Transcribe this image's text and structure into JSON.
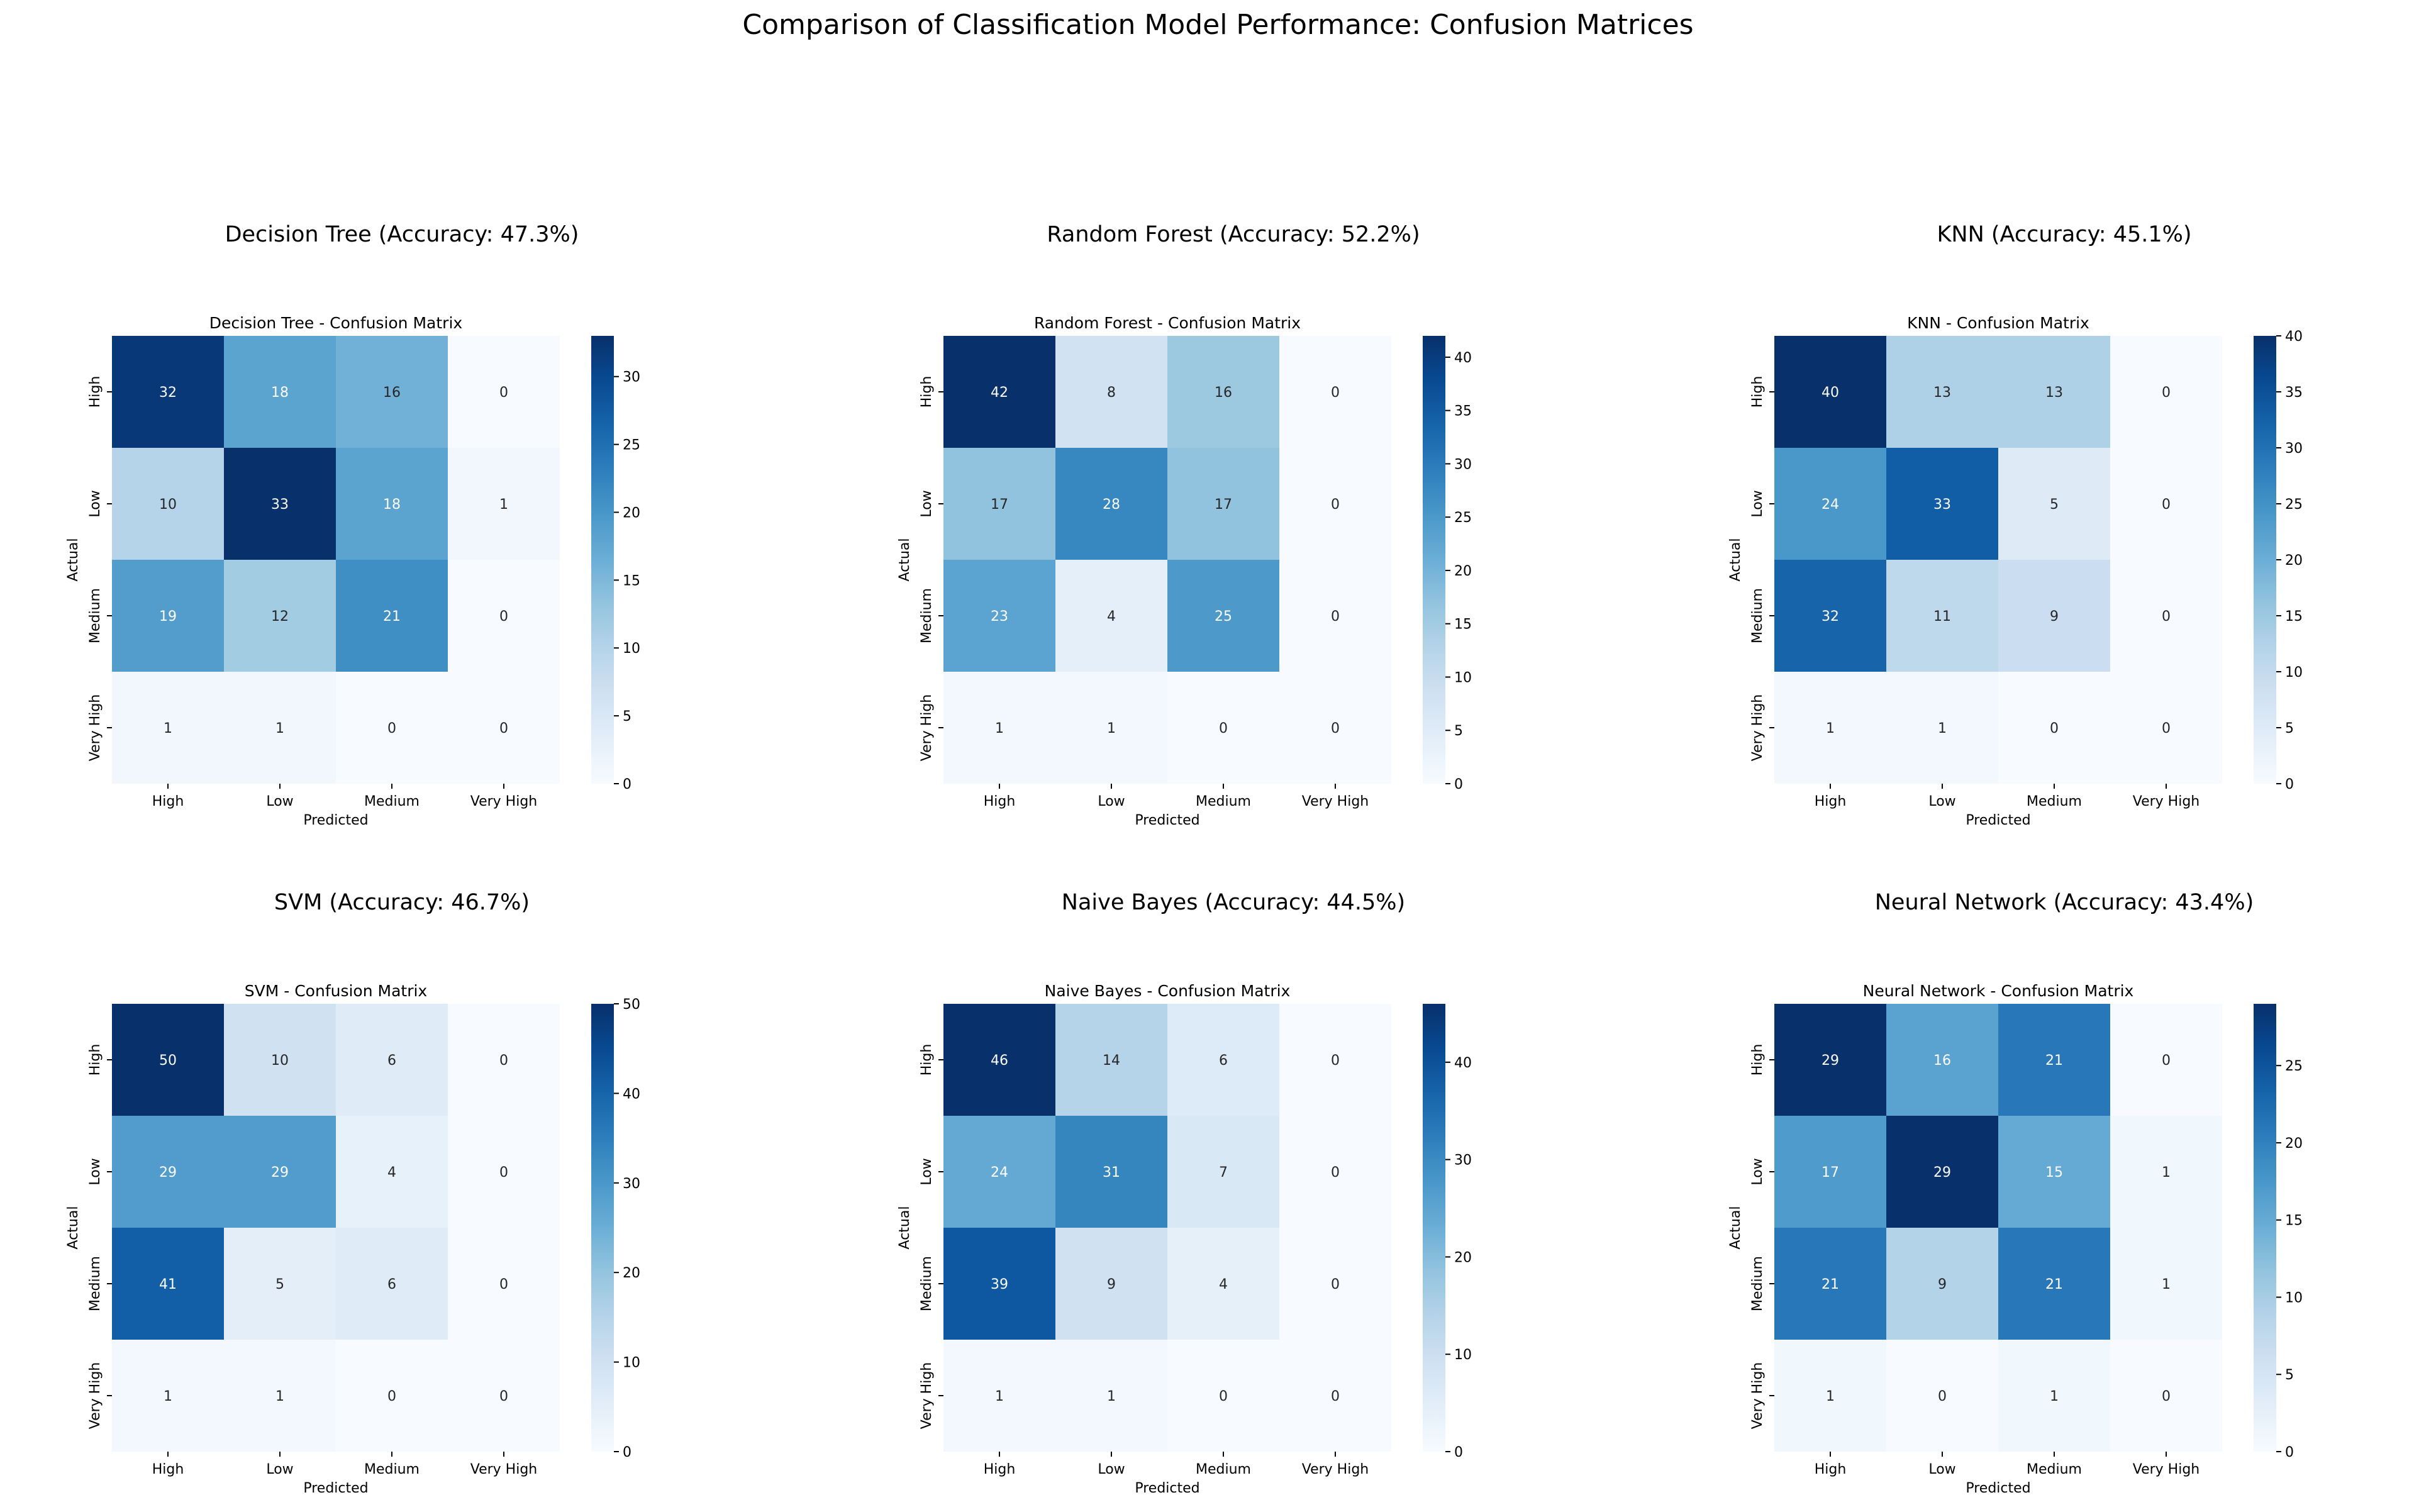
{
  "figure": {
    "title": "Comparison of Classification Model Performance: Confusion Matrices"
  },
  "colormap": {
    "name": "Blues",
    "low": "#f7fbff",
    "high": "#08306b",
    "text_light": "#ffffff",
    "text_dark": "#262626"
  },
  "chart_data": [
    {
      "type": "heatmap",
      "panel_title": "Decision Tree (Accuracy: 47.3%)",
      "title": "Decision Tree - Confusion Matrix",
      "xlabel": "Predicted",
      "ylabel": "Actual",
      "x_categories": [
        "High",
        "Low",
        "Medium",
        "Very High"
      ],
      "y_categories": [
        "High",
        "Low",
        "Medium",
        "Very High"
      ],
      "values": [
        [
          32,
          18,
          16,
          0
        ],
        [
          10,
          33,
          18,
          1
        ],
        [
          19,
          12,
          21,
          0
        ],
        [
          1,
          1,
          0,
          0
        ]
      ],
      "colorbar_range": [
        0,
        33
      ],
      "colorbar_ticks": [
        0,
        5,
        10,
        15,
        20,
        25,
        30
      ]
    },
    {
      "type": "heatmap",
      "panel_title": "Random Forest (Accuracy: 52.2%)",
      "title": "Random Forest - Confusion Matrix",
      "xlabel": "Predicted",
      "ylabel": "Actual",
      "x_categories": [
        "High",
        "Low",
        "Medium",
        "Very High"
      ],
      "y_categories": [
        "High",
        "Low",
        "Medium",
        "Very High"
      ],
      "values": [
        [
          42,
          8,
          16,
          0
        ],
        [
          17,
          28,
          17,
          0
        ],
        [
          23,
          4,
          25,
          0
        ],
        [
          1,
          1,
          0,
          0
        ]
      ],
      "colorbar_range": [
        0,
        42
      ],
      "colorbar_ticks": [
        0,
        5,
        10,
        15,
        20,
        25,
        30,
        35,
        40
      ]
    },
    {
      "type": "heatmap",
      "panel_title": "KNN (Accuracy: 45.1%)",
      "title": "KNN - Confusion Matrix",
      "xlabel": "Predicted",
      "ylabel": "Actual",
      "x_categories": [
        "High",
        "Low",
        "Medium",
        "Very High"
      ],
      "y_categories": [
        "High",
        "Low",
        "Medium",
        "Very High"
      ],
      "values": [
        [
          40,
          13,
          13,
          0
        ],
        [
          24,
          33,
          5,
          0
        ],
        [
          32,
          11,
          9,
          0
        ],
        [
          1,
          1,
          0,
          0
        ]
      ],
      "colorbar_range": [
        0,
        40
      ],
      "colorbar_ticks": [
        0,
        5,
        10,
        15,
        20,
        25,
        30,
        35,
        40
      ]
    },
    {
      "type": "heatmap",
      "panel_title": "SVM (Accuracy: 46.7%)",
      "title": "SVM - Confusion Matrix",
      "xlabel": "Predicted",
      "ylabel": "Actual",
      "x_categories": [
        "High",
        "Low",
        "Medium",
        "Very High"
      ],
      "y_categories": [
        "High",
        "Low",
        "Medium",
        "Very High"
      ],
      "values": [
        [
          50,
          10,
          6,
          0
        ],
        [
          29,
          29,
          4,
          0
        ],
        [
          41,
          5,
          6,
          0
        ],
        [
          1,
          1,
          0,
          0
        ]
      ],
      "colorbar_range": [
        0,
        50
      ],
      "colorbar_ticks": [
        0,
        10,
        20,
        30,
        40,
        50
      ]
    },
    {
      "type": "heatmap",
      "panel_title": "Naive Bayes (Accuracy: 44.5%)",
      "title": "Naive Bayes - Confusion Matrix",
      "xlabel": "Predicted",
      "ylabel": "Actual",
      "x_categories": [
        "High",
        "Low",
        "Medium",
        "Very High"
      ],
      "y_categories": [
        "High",
        "Low",
        "Medium",
        "Very High"
      ],
      "values": [
        [
          46,
          14,
          6,
          0
        ],
        [
          24,
          31,
          7,
          0
        ],
        [
          39,
          9,
          4,
          0
        ],
        [
          1,
          1,
          0,
          0
        ]
      ],
      "colorbar_range": [
        0,
        46
      ],
      "colorbar_ticks": [
        0,
        10,
        20,
        30,
        40
      ]
    },
    {
      "type": "heatmap",
      "panel_title": "Neural Network (Accuracy: 43.4%)",
      "title": "Neural Network - Confusion Matrix",
      "xlabel": "Predicted",
      "ylabel": "Actual",
      "x_categories": [
        "High",
        "Low",
        "Medium",
        "Very High"
      ],
      "y_categories": [
        "High",
        "Low",
        "Medium",
        "Very High"
      ],
      "values": [
        [
          29,
          16,
          21,
          0
        ],
        [
          17,
          29,
          15,
          1
        ],
        [
          21,
          9,
          21,
          1
        ],
        [
          1,
          0,
          1,
          0
        ]
      ],
      "colorbar_range": [
        0,
        29
      ],
      "colorbar_ticks": [
        0,
        5,
        10,
        15,
        20,
        25
      ]
    }
  ]
}
